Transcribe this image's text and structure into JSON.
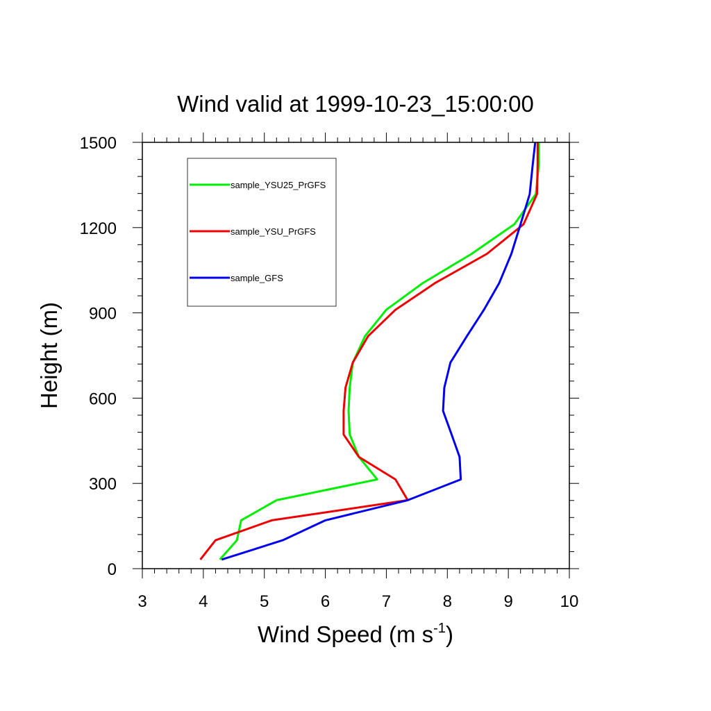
{
  "chart_data": {
    "type": "line",
    "title": "Wind valid at 1999-10-23_15:00:00",
    "xlabel_main": "Wind Speed (m s",
    "xlabel_sup": "-1",
    "xlabel_close": ")",
    "ylabel": "Height (m)",
    "xlim": [
      3,
      10
    ],
    "ylim": [
      0,
      1500
    ],
    "x_ticks": [
      3,
      4,
      5,
      6,
      7,
      8,
      9,
      10
    ],
    "y_ticks": [
      0,
      300,
      600,
      900,
      1200,
      1500
    ],
    "legend_position": "top-left",
    "series": [
      {
        "name": "sample_YSU25_PrGFS",
        "color": "#00ee00",
        "points": [
          [
            4.27,
            32
          ],
          [
            4.55,
            100
          ],
          [
            4.62,
            170
          ],
          [
            5.2,
            241
          ],
          [
            6.85,
            314
          ],
          [
            6.55,
            393
          ],
          [
            6.4,
            472
          ],
          [
            6.38,
            555
          ],
          [
            6.4,
            637
          ],
          [
            6.45,
            725
          ],
          [
            6.65,
            818
          ],
          [
            7.0,
            911
          ],
          [
            7.6,
            1005
          ],
          [
            8.4,
            1108
          ],
          [
            9.1,
            1212
          ],
          [
            9.45,
            1318
          ],
          [
            9.5,
            1423
          ],
          [
            9.5,
            1500
          ]
        ]
      },
      {
        "name": "sample_YSU_PrGFS",
        "color": "#ee0000",
        "points": [
          [
            3.95,
            32
          ],
          [
            4.2,
            100
          ],
          [
            5.12,
            170
          ],
          [
            7.35,
            241
          ],
          [
            7.15,
            314
          ],
          [
            6.55,
            393
          ],
          [
            6.3,
            472
          ],
          [
            6.3,
            555
          ],
          [
            6.33,
            637
          ],
          [
            6.45,
            725
          ],
          [
            6.7,
            818
          ],
          [
            7.15,
            911
          ],
          [
            7.8,
            1005
          ],
          [
            8.65,
            1108
          ],
          [
            9.25,
            1212
          ],
          [
            9.47,
            1318
          ],
          [
            9.48,
            1423
          ],
          [
            9.48,
            1500
          ]
        ]
      },
      {
        "name": "sample_GFS",
        "color": "#0000ee",
        "points": [
          [
            4.3,
            32
          ],
          [
            5.3,
            100
          ],
          [
            6.0,
            170
          ],
          [
            7.35,
            241
          ],
          [
            8.22,
            314
          ],
          [
            8.2,
            393
          ],
          [
            8.07,
            472
          ],
          [
            7.93,
            555
          ],
          [
            7.95,
            637
          ],
          [
            8.05,
            725
          ],
          [
            8.32,
            818
          ],
          [
            8.6,
            911
          ],
          [
            8.85,
            1005
          ],
          [
            9.05,
            1108
          ],
          [
            9.2,
            1212
          ],
          [
            9.35,
            1318
          ],
          [
            9.4,
            1423
          ],
          [
            9.44,
            1500
          ]
        ]
      }
    ]
  }
}
